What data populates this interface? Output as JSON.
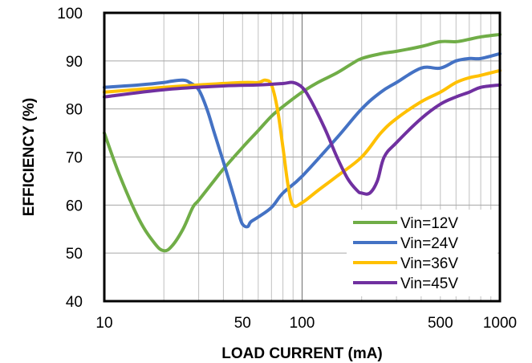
{
  "chart_data": {
    "type": "line",
    "title": "",
    "xlabel": "LOAD CURRENT (mA)",
    "ylabel": "EFFICIENCY (%)",
    "x_scale": "log",
    "xlim": [
      10,
      1000
    ],
    "ylim": [
      40,
      100
    ],
    "x_ticks": [
      10,
      50,
      100,
      500,
      1000
    ],
    "x_tick_labels": [
      "10",
      "50",
      "100",
      "500",
      "1000"
    ],
    "y_ticks": [
      40,
      50,
      60,
      70,
      80,
      90,
      100
    ],
    "y_tick_labels": [
      "40",
      "50",
      "60",
      "70",
      "80",
      "90",
      "100"
    ],
    "grid": true,
    "legend_position": "bottom-right",
    "series": [
      {
        "name": "Vin=12V",
        "color": "#70AD47",
        "points": [
          [
            10,
            75
          ],
          [
            12,
            66
          ],
          [
            15,
            57
          ],
          [
            18,
            52
          ],
          [
            20,
            50.5
          ],
          [
            22,
            51.5
          ],
          [
            25,
            55
          ],
          [
            28,
            59.5
          ],
          [
            30,
            61
          ],
          [
            35,
            64.5
          ],
          [
            40,
            67.5
          ],
          [
            50,
            72
          ],
          [
            60,
            75.5
          ],
          [
            70,
            78.5
          ],
          [
            80,
            80.5
          ],
          [
            100,
            83.5
          ],
          [
            120,
            85.5
          ],
          [
            150,
            87.5
          ],
          [
            180,
            89.5
          ],
          [
            200,
            90.5
          ],
          [
            250,
            91.5
          ],
          [
            300,
            92
          ],
          [
            400,
            93
          ],
          [
            500,
            94
          ],
          [
            600,
            94
          ],
          [
            700,
            94.5
          ],
          [
            800,
            95
          ],
          [
            1000,
            95.5
          ]
        ]
      },
      {
        "name": "Vin=24V",
        "color": "#4472C4",
        "points": [
          [
            10,
            84.5
          ],
          [
            15,
            85
          ],
          [
            20,
            85.5
          ],
          [
            22,
            85.8
          ],
          [
            25,
            86
          ],
          [
            27,
            85.5
          ],
          [
            30,
            84
          ],
          [
            33,
            80
          ],
          [
            36,
            75
          ],
          [
            40,
            69
          ],
          [
            45,
            62
          ],
          [
            48,
            58
          ],
          [
            50,
            56
          ],
          [
            53,
            55.5
          ],
          [
            55,
            56.5
          ],
          [
            60,
            57.5
          ],
          [
            70,
            59.5
          ],
          [
            80,
            62.5
          ],
          [
            100,
            66
          ],
          [
            150,
            74
          ],
          [
            200,
            80
          ],
          [
            250,
            83.5
          ],
          [
            300,
            85.5
          ],
          [
            400,
            88.5
          ],
          [
            500,
            88.5
          ],
          [
            600,
            90
          ],
          [
            700,
            90.5
          ],
          [
            800,
            90.5
          ],
          [
            1000,
            91.5
          ]
        ]
      },
      {
        "name": "Vin=36V",
        "color": "#FFC000",
        "points": [
          [
            10,
            83.5
          ],
          [
            20,
            84.5
          ],
          [
            30,
            85
          ],
          [
            50,
            85.5
          ],
          [
            60,
            85.5
          ],
          [
            65,
            86
          ],
          [
            70,
            85
          ],
          [
            75,
            80
          ],
          [
            80,
            72
          ],
          [
            85,
            64
          ],
          [
            90,
            60
          ],
          [
            100,
            60.5
          ],
          [
            120,
            63
          ],
          [
            150,
            66
          ],
          [
            200,
            70
          ],
          [
            250,
            75
          ],
          [
            300,
            78
          ],
          [
            400,
            81.5
          ],
          [
            500,
            83.5
          ],
          [
            600,
            85.5
          ],
          [
            700,
            86.5
          ],
          [
            800,
            87
          ],
          [
            1000,
            88
          ]
        ]
      },
      {
        "name": "Vin=45V",
        "color": "#7030A0",
        "points": [
          [
            10,
            82.5
          ],
          [
            20,
            84
          ],
          [
            40,
            84.8
          ],
          [
            60,
            85
          ],
          [
            80,
            85.3
          ],
          [
            90,
            85.5
          ],
          [
            100,
            84.5
          ],
          [
            110,
            82
          ],
          [
            130,
            76
          ],
          [
            150,
            70
          ],
          [
            170,
            65.5
          ],
          [
            190,
            63
          ],
          [
            200,
            62.5
          ],
          [
            220,
            62.5
          ],
          [
            240,
            65
          ],
          [
            260,
            70
          ],
          [
            300,
            73
          ],
          [
            400,
            78
          ],
          [
            500,
            81
          ],
          [
            600,
            82.5
          ],
          [
            700,
            83.5
          ],
          [
            800,
            84.5
          ],
          [
            1000,
            85
          ]
        ]
      }
    ]
  }
}
